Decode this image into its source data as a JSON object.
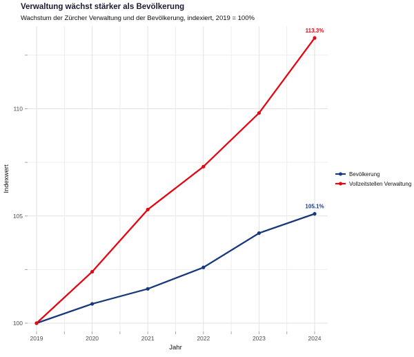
{
  "header": {
    "title": "Verwaltung wächst stärker als Bevölkerung",
    "subtitle": "Wachstum der Zürcher Verwaltung und der Bevölkerung, indexiert, 2019 = 100%"
  },
  "chart_data": {
    "type": "line",
    "x": [
      2019,
      2020,
      2021,
      2022,
      2023,
      2024
    ],
    "series": [
      {
        "name": "Bevölkerung",
        "color": "#17397c",
        "values": [
          100,
          100.9,
          101.6,
          102.6,
          104.2,
          105.1
        ],
        "end_label": "105.1%"
      },
      {
        "name": "Vollzeitstellen Verwaltung",
        "color": "#e30613",
        "values": [
          100,
          102.4,
          105.3,
          107.3,
          109.8,
          113.3
        ],
        "end_label": "113.3%"
      }
    ],
    "title": "Verwaltung wächst stärker als Bevölkerung",
    "subtitle": "Wachstum der Zürcher Verwaltung und der Bevölkerung, indexiert, 2019 = 100%",
    "xlabel": "Jahr",
    "ylabel": "Indexwert",
    "xlim": [
      2018.8,
      2024.25
    ],
    "ylim": [
      99.6,
      113.9
    ],
    "yticks_major": [
      100,
      105,
      110
    ],
    "yticks_minor": [
      102.5,
      107.5,
      112.5
    ],
    "xticks_minor": [
      2019.5,
      2020.5,
      2021.5,
      2022.5,
      2023.5
    ],
    "grid": true,
    "legend_position": "right"
  },
  "colors": {
    "title": "#1a1a33",
    "grid_major": "#e2e2e2",
    "grid_minor": "#ededed",
    "tick_mark": "#a6a6a6",
    "tick_label": "#4d4d4d",
    "axis_title": "#0d0d0d",
    "legend_label": "#111111",
    "background": "#ffffff"
  }
}
